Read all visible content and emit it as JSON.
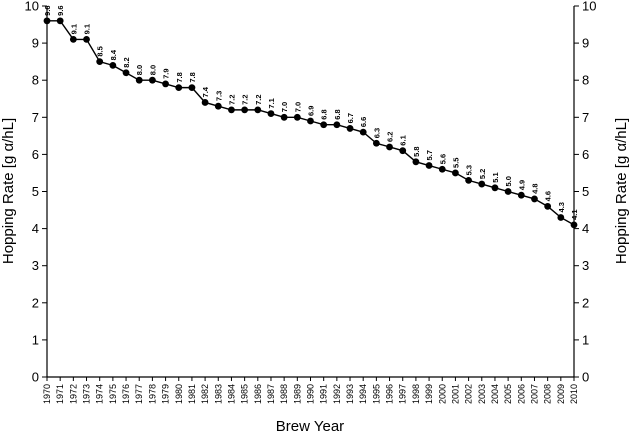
{
  "chart_data": {
    "type": "line",
    "xlabel": "Brew Year",
    "ylabel": "Hopping Rate [g α/hL]",
    "ylim": [
      0,
      10
    ],
    "yticks": [
      0,
      1,
      2,
      3,
      4,
      5,
      6,
      7,
      8,
      9,
      10
    ],
    "grid": false,
    "y_axis_right_mirror": true,
    "x": [
      1970,
      1971,
      1972,
      1973,
      1974,
      1975,
      1976,
      1977,
      1978,
      1979,
      1980,
      1981,
      1982,
      1983,
      1984,
      1985,
      1986,
      1987,
      1988,
      1989,
      1990,
      1991,
      1992,
      1993,
      1994,
      1995,
      1996,
      1997,
      1998,
      1999,
      2000,
      2001,
      2002,
      2003,
      2004,
      2005,
      2006,
      2007,
      2008,
      2009,
      2010
    ],
    "values": [
      9.6,
      9.6,
      9.1,
      9.1,
      8.5,
      8.4,
      8.2,
      8.0,
      8.0,
      7.9,
      7.8,
      7.8,
      7.4,
      7.3,
      7.2,
      7.2,
      7.2,
      7.1,
      7.0,
      7.0,
      6.9,
      6.8,
      6.8,
      6.7,
      6.6,
      6.3,
      6.2,
      6.1,
      5.8,
      5.7,
      5.6,
      5.5,
      5.3,
      5.2,
      5.1,
      5.0,
      4.9,
      4.8,
      4.6,
      4.3,
      4.1
    ],
    "labels": [
      "9.6",
      "9.6",
      "9.1",
      "9.1",
      "8.5",
      "8.4",
      "8.2",
      "8.0",
      "8.0",
      "7.9",
      "7.8",
      "7.8",
      "7.4",
      "7.3",
      "7.2",
      "7.2",
      "7.2",
      "7.1",
      "7.0",
      "7.0",
      "6.9",
      "6.8",
      "6.8",
      "6.7",
      "6.6",
      "6.3",
      "6.2",
      "6.1",
      "5.8",
      "5.7",
      "5.6",
      "5.5",
      "5.3",
      "5.2",
      "5.1",
      "5.0",
      "4.9",
      "4.8",
      "4.6",
      "4.3",
      "4.1"
    ]
  }
}
